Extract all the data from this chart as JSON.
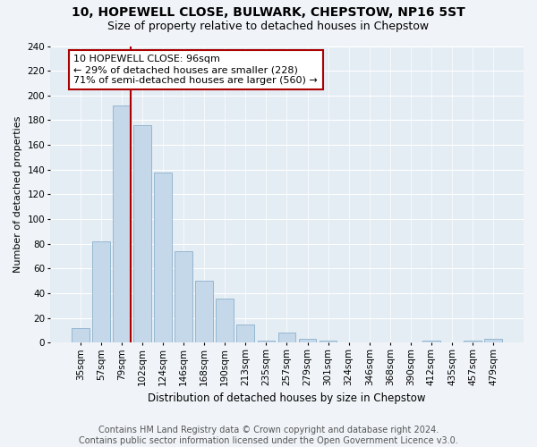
{
  "title": "10, HOPEWELL CLOSE, BULWARK, CHEPSTOW, NP16 5ST",
  "subtitle": "Size of property relative to detached houses in Chepstow",
  "xlabel": "Distribution of detached houses by size in Chepstow",
  "ylabel": "Number of detached properties",
  "footer_line1": "Contains HM Land Registry data © Crown copyright and database right 2024.",
  "footer_line2": "Contains public sector information licensed under the Open Government Licence v3.0.",
  "bar_labels": [
    "35sqm",
    "57sqm",
    "79sqm",
    "102sqm",
    "124sqm",
    "146sqm",
    "168sqm",
    "190sqm",
    "213sqm",
    "235sqm",
    "257sqm",
    "279sqm",
    "301sqm",
    "324sqm",
    "346sqm",
    "368sqm",
    "390sqm",
    "412sqm",
    "435sqm",
    "457sqm",
    "479sqm"
  ],
  "bar_values": [
    12,
    82,
    192,
    176,
    138,
    74,
    50,
    36,
    15,
    2,
    8,
    3,
    2,
    0,
    0,
    0,
    0,
    2,
    0,
    2,
    3
  ],
  "bar_color": "#c5d8ea",
  "bar_edge_color": "#8ab0cc",
  "vline_bar_index": 2,
  "vline_color": "#aa0000",
  "annotation_text": "10 HOPEWELL CLOSE: 96sqm\n← 29% of detached houses are smaller (228)\n71% of semi-detached houses are larger (560) →",
  "annotation_box_color": "white",
  "annotation_box_edge": "#aa0000",
  "ylim": [
    0,
    240
  ],
  "yticks": [
    0,
    20,
    40,
    60,
    80,
    100,
    120,
    140,
    160,
    180,
    200,
    220,
    240
  ],
  "background_color": "#f0f4f8",
  "plot_bg_color": "#e4ecf4",
  "title_fontsize": 10,
  "subtitle_fontsize": 9,
  "axis_label_fontsize": 8,
  "tick_fontsize": 7.5,
  "annotation_fontsize": 8,
  "footer_fontsize": 7
}
